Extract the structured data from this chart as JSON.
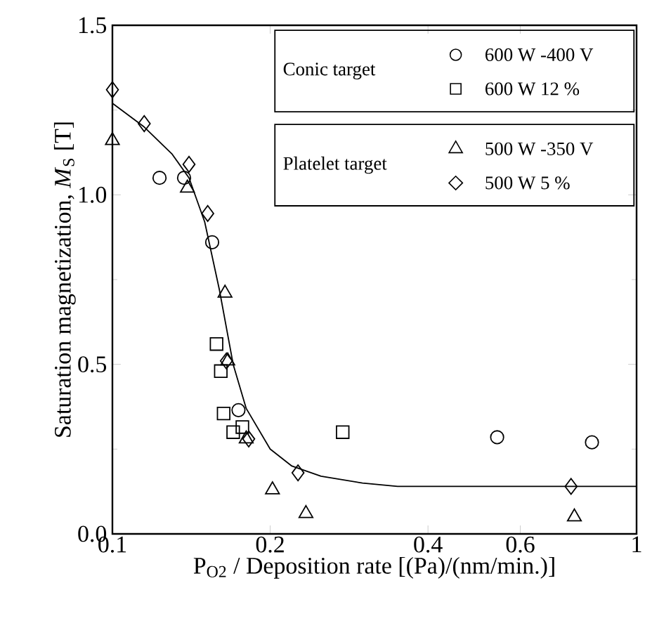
{
  "chart_data": {
    "type": "scatter",
    "xlabel": "P$_{O2}$ / Deposition rate [(Pa)/(nm/min.)]",
    "ylabel": "Saturation magnetization, *M*$_{S}$ [T]",
    "log": "x",
    "xlim": [
      0.1,
      1
    ],
    "ylim": [
      0,
      1.5
    ],
    "xticks": [
      0.1,
      0.2,
      0.4,
      0.6,
      1
    ],
    "yticks": [
      {
        "value": 0,
        "label": "0.0"
      },
      0.5,
      {
        "value": 1,
        "label": "1.0"
      },
      1.5
    ],
    "legend": "top right",
    "annotations": [
      "Conic target",
      "Platelet target"
    ],
    "series": [
      {
        "name": "600 W -400 V",
        "type": "scatter",
        "marker": "circle",
        "color": "#000000",
        "x": [
          0.123,
          0.137,
          0.155,
          0.174,
          0.542,
          0.822
        ],
        "values": [
          1.05,
          1.05,
          0.86,
          0.365,
          0.285,
          0.27
        ]
      },
      {
        "name": "600 W  12 %",
        "type": "scatter",
        "marker": "square",
        "color": "#000000",
        "x": [
          0.158,
          0.161,
          0.163,
          0.17,
          0.177,
          0.275
        ],
        "values": [
          0.56,
          0.48,
          0.355,
          0.3,
          0.315,
          0.3
        ]
      },
      {
        "name": "500 W -350 V",
        "type": "scatter",
        "marker": "triangle",
        "color": "#000000",
        "x": [
          0.1,
          0.139,
          0.164,
          0.166,
          0.18,
          0.202,
          0.234,
          0.761
        ],
        "values": [
          1.16,
          1.02,
          0.71,
          0.51,
          0.28,
          0.13,
          0.06,
          0.05
        ]
      },
      {
        "name": "500 W  5 %",
        "type": "scatter",
        "marker": "diamond",
        "color": "#000000",
        "x": [
          0.1,
          0.115,
          0.14,
          0.152,
          0.165,
          0.182,
          0.226,
          0.75
        ],
        "values": [
          1.31,
          1.21,
          1.09,
          0.945,
          0.51,
          0.28,
          0.18,
          0.14
        ]
      },
      {
        "type": "line",
        "marker": "none",
        "color": "#000000",
        "x": [
          0.1,
          0.115,
          0.13,
          0.14,
          0.15,
          0.16,
          0.17,
          0.18,
          0.2,
          0.22,
          0.25,
          0.3,
          0.35,
          0.5,
          1
        ],
        "values": [
          1.27,
          1.2,
          1.12,
          1.05,
          0.92,
          0.72,
          0.5,
          0.37,
          0.25,
          0.2,
          0.17,
          0.15,
          0.14,
          0.14,
          0.14
        ]
      }
    ]
  }
}
